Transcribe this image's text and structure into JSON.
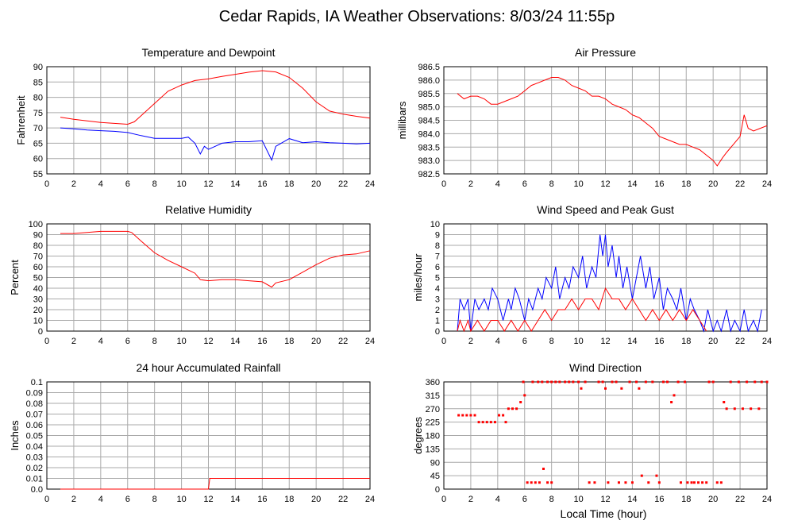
{
  "page": {
    "title": "Cedar Rapids, IA Weather Observations: 8/03/24 11:55p",
    "xlabel": "Local Time (hour)"
  },
  "colors": {
    "red": "#ff0000",
    "blue": "#0000ff",
    "grid": "#aaaaaa",
    "plot_bg": "#ffffff"
  },
  "chart_data": [
    {
      "id": "temp",
      "type": "line",
      "title": "Temperature and Dewpoint",
      "ylabel": "Fahrenheit",
      "xlim": [
        0,
        24
      ],
      "ylim": [
        55,
        90
      ],
      "xticks": [
        "0",
        "2",
        "4",
        "6",
        "8",
        "10",
        "12",
        "14",
        "16",
        "18",
        "20",
        "22",
        "24"
      ],
      "yticks": [
        "55",
        "60",
        "65",
        "70",
        "75",
        "80",
        "85",
        "90"
      ],
      "grid": true,
      "series": [
        {
          "color": "#ff0000",
          "x": [
            1,
            2,
            3,
            4,
            5,
            6,
            6.5,
            7,
            8,
            9,
            10,
            11,
            12,
            13,
            14,
            15,
            16,
            17,
            18,
            19,
            20,
            21,
            22,
            23,
            24
          ],
          "y": [
            73.5,
            72.8,
            72.3,
            71.8,
            71.5,
            71.2,
            72,
            74,
            78,
            82,
            84,
            85.5,
            86,
            86.8,
            87.5,
            88.2,
            88.7,
            88.3,
            86.5,
            83,
            78.5,
            75.5,
            74.5,
            73.8,
            73.2
          ]
        },
        {
          "color": "#0000ff",
          "x": [
            1,
            2,
            3,
            4,
            5,
            6,
            7,
            8,
            9,
            10,
            10.5,
            11,
            11.4,
            11.7,
            12,
            12.5,
            13,
            14,
            15,
            16,
            16.7,
            17,
            18,
            19,
            20,
            21,
            22,
            23,
            24
          ],
          "y": [
            70,
            69.7,
            69.3,
            69.1,
            68.9,
            68.5,
            67.5,
            66.6,
            66.6,
            66.6,
            67,
            65,
            61.5,
            64,
            63,
            64,
            65,
            65.5,
            65.5,
            65.8,
            59.5,
            64,
            66.5,
            65.2,
            65.5,
            65.2,
            65,
            64.8,
            65
          ]
        }
      ]
    },
    {
      "id": "pressure",
      "type": "line",
      "title": "Air Pressure",
      "ylabel": "millibars",
      "xlim": [
        0,
        24
      ],
      "ylim": [
        982.5,
        986.5
      ],
      "xticks": [
        "0",
        "2",
        "4",
        "6",
        "8",
        "10",
        "12",
        "14",
        "16",
        "18",
        "20",
        "22",
        "24"
      ],
      "yticks": [
        "982.5",
        "983.0",
        "983.5",
        "984.0",
        "984.5",
        "985.0",
        "985.5",
        "986.0",
        "986.5"
      ],
      "grid": true,
      "series": [
        {
          "color": "#ff0000",
          "x": [
            1,
            1.5,
            2,
            2.5,
            3,
            3.5,
            4,
            4.5,
            5,
            5.5,
            6,
            6.5,
            7,
            7.5,
            8,
            8.5,
            9,
            9.5,
            10,
            10.5,
            11,
            11.5,
            12,
            12.5,
            13,
            13.5,
            14,
            14.5,
            15,
            15.5,
            16,
            16.5,
            17,
            17.5,
            18,
            18.5,
            19,
            19.5,
            20,
            20.3,
            20.7,
            21,
            21.5,
            22,
            22.3,
            22.6,
            23,
            23.5,
            24
          ],
          "y": [
            985.5,
            985.3,
            985.4,
            985.4,
            985.3,
            985.1,
            985.1,
            985.2,
            985.3,
            985.4,
            985.6,
            985.8,
            985.9,
            986.0,
            986.1,
            986.1,
            986.0,
            985.8,
            985.7,
            985.6,
            985.4,
            985.4,
            985.3,
            985.1,
            985.0,
            984.9,
            984.7,
            984.6,
            984.4,
            984.2,
            983.9,
            983.8,
            983.7,
            983.6,
            983.6,
            983.5,
            983.4,
            983.2,
            983.0,
            982.8,
            983.1,
            983.3,
            983.6,
            983.9,
            984.7,
            984.2,
            984.1,
            984.2,
            984.3
          ]
        }
      ]
    },
    {
      "id": "humidity",
      "type": "line",
      "title": "Relative Humidity",
      "ylabel": "Percent",
      "xlim": [
        0,
        24
      ],
      "ylim": [
        0,
        100
      ],
      "xticks": [
        "0",
        "2",
        "4",
        "6",
        "8",
        "10",
        "12",
        "14",
        "16",
        "18",
        "20",
        "22",
        "24"
      ],
      "yticks": [
        "0",
        "10",
        "20",
        "30",
        "40",
        "50",
        "60",
        "70",
        "80",
        "90",
        "100"
      ],
      "grid": true,
      "series": [
        {
          "color": "#ff0000",
          "x": [
            1,
            2,
            3,
            4,
            5,
            6,
            6.3,
            7,
            8,
            9,
            10,
            11,
            11.4,
            12,
            13,
            14,
            15,
            16,
            16.7,
            17,
            18,
            19,
            20,
            21,
            22,
            23,
            24
          ],
          "y": [
            91,
            91,
            92,
            93,
            93,
            93,
            92,
            84,
            73,
            66,
            60,
            54,
            48,
            47,
            48,
            48,
            47,
            46,
            41,
            45,
            48,
            55,
            62,
            68,
            71,
            72,
            75
          ]
        }
      ]
    },
    {
      "id": "wind",
      "type": "line",
      "title": "Wind Speed and Peak Gust",
      "ylabel": "miles/hour",
      "xlim": [
        0,
        24
      ],
      "ylim": [
        0,
        10
      ],
      "xticks": [
        "0",
        "2",
        "4",
        "6",
        "8",
        "10",
        "12",
        "14",
        "16",
        "18",
        "20",
        "22",
        "24"
      ],
      "yticks": [
        "0",
        "1",
        "2",
        "3",
        "4",
        "5",
        "6",
        "7",
        "8",
        "9",
        "10"
      ],
      "grid": true,
      "series": [
        {
          "color": "#0000ff",
          "x": [
            1,
            1.2,
            1.5,
            1.8,
            2,
            2.3,
            2.6,
            3,
            3.3,
            3.6,
            4,
            4.4,
            4.8,
            5,
            5.3,
            5.6,
            6,
            6.3,
            6.6,
            7,
            7.3,
            7.6,
            8,
            8.3,
            8.6,
            9,
            9.3,
            9.6,
            10,
            10.3,
            10.6,
            11,
            11.3,
            11.6,
            11.8,
            12,
            12.2,
            12.5,
            12.8,
            13,
            13.3,
            13.6,
            14,
            14.3,
            14.6,
            15,
            15.3,
            15.6,
            16,
            16.3,
            16.6,
            17,
            17.3,
            17.6,
            18,
            18.3,
            18.6,
            19,
            19.3,
            19.6,
            20,
            20.3,
            20.6,
            21,
            21.3,
            21.6,
            22,
            22.3,
            22.6,
            23,
            23.3,
            23.6
          ],
          "y": [
            0,
            3,
            2,
            3,
            0,
            3,
            2,
            3,
            2,
            4,
            3,
            1,
            3,
            2,
            4,
            3,
            1,
            3,
            2,
            4,
            3,
            5,
            4,
            6,
            3,
            5,
            4,
            6,
            5,
            7,
            4,
            6,
            5,
            9,
            7,
            9,
            6,
            8,
            5,
            7,
            4,
            6,
            3,
            5,
            7,
            4,
            6,
            3,
            5,
            2,
            4,
            3,
            2,
            4,
            1,
            3,
            2,
            1,
            0,
            2,
            0,
            1,
            0,
            2,
            0,
            1,
            0,
            2,
            0,
            1,
            0,
            2
          ]
        },
        {
          "color": "#ff0000",
          "x": [
            1,
            1.2,
            1.5,
            1.8,
            2,
            2.5,
            3,
            3.5,
            4,
            4.5,
            5,
            5.5,
            6,
            6.5,
            7,
            7.5,
            8,
            8.5,
            9,
            9.5,
            10,
            10.5,
            11,
            11.5,
            12,
            12.5,
            13,
            13.5,
            14,
            14.5,
            15,
            15.5,
            16,
            16.5,
            17,
            17.5,
            18,
            18.5,
            19,
            19.5
          ],
          "y": [
            0,
            1,
            0,
            1,
            0,
            1,
            0,
            1,
            1,
            0,
            1,
            0,
            1,
            0,
            1,
            2,
            1,
            2,
            2,
            3,
            2,
            3,
            3,
            2,
            4,
            3,
            3,
            2,
            3,
            2,
            1,
            2,
            1,
            2,
            1,
            2,
            1,
            2,
            1,
            0
          ]
        }
      ]
    },
    {
      "id": "rain",
      "type": "line",
      "title": "24 hour Accumulated Rainfall",
      "ylabel": "Inches",
      "xlim": [
        0,
        24
      ],
      "ylim": [
        0,
        0.1
      ],
      "xticks": [
        "0",
        "2",
        "4",
        "6",
        "8",
        "10",
        "12",
        "14",
        "16",
        "18",
        "20",
        "22",
        "24"
      ],
      "yticks": [
        "0.0",
        "0.01",
        "0.02",
        "0.03",
        "0.04",
        "0.05",
        "0.06",
        "0.07",
        "0.08",
        "0.09",
        "0.1"
      ],
      "grid": true,
      "series": [
        {
          "color": "#ff0000",
          "x": [
            1,
            11.9,
            12,
            12.1,
            24
          ],
          "y": [
            0,
            0,
            0,
            0.01,
            0.01
          ]
        }
      ]
    },
    {
      "id": "winddir",
      "type": "scatter",
      "title": "Wind Direction",
      "ylabel": "degrees",
      "xlim": [
        0,
        24
      ],
      "ylim": [
        0,
        360
      ],
      "xticks": [
        "0",
        "2",
        "4",
        "6",
        "8",
        "10",
        "12",
        "14",
        "16",
        "18",
        "20",
        "22",
        "24"
      ],
      "yticks": [
        "0",
        "45",
        "90",
        "135",
        "180",
        "225",
        "270",
        "315",
        "360"
      ],
      "grid": true,
      "series": [
        {
          "color": "#ff0000",
          "points": [
            [
              1.1,
              248
            ],
            [
              1.4,
              248
            ],
            [
              1.7,
              248
            ],
            [
              2.0,
              248
            ],
            [
              2.3,
              248
            ],
            [
              2.6,
              225
            ],
            [
              2.9,
              225
            ],
            [
              3.2,
              225
            ],
            [
              3.5,
              225
            ],
            [
              3.8,
              225
            ],
            [
              4.1,
              248
            ],
            [
              4.4,
              248
            ],
            [
              4.6,
              225
            ],
            [
              4.8,
              270
            ],
            [
              5.1,
              270
            ],
            [
              5.4,
              270
            ],
            [
              5.7,
              292
            ],
            [
              6.0,
              315
            ],
            [
              6.2,
              22
            ],
            [
              6.5,
              22
            ],
            [
              6.8,
              22
            ],
            [
              7.1,
              22
            ],
            [
              7.4,
              68
            ],
            [
              7.7,
              22
            ],
            [
              8.0,
              22
            ],
            [
              5.9,
              360
            ],
            [
              6.6,
              360
            ],
            [
              7.0,
              360
            ],
            [
              7.3,
              360
            ],
            [
              7.7,
              360
            ],
            [
              8.0,
              360
            ],
            [
              8.3,
              360
            ],
            [
              8.6,
              360
            ],
            [
              9.0,
              360
            ],
            [
              9.3,
              360
            ],
            [
              9.6,
              360
            ],
            [
              10.0,
              360
            ],
            [
              10.2,
              338
            ],
            [
              10.5,
              360
            ],
            [
              10.8,
              22
            ],
            [
              11.2,
              22
            ],
            [
              11.5,
              360
            ],
            [
              11.8,
              360
            ],
            [
              12.0,
              338
            ],
            [
              12.2,
              22
            ],
            [
              12.5,
              360
            ],
            [
              12.8,
              360
            ],
            [
              13.0,
              22
            ],
            [
              13.2,
              338
            ],
            [
              13.5,
              22
            ],
            [
              13.8,
              360
            ],
            [
              14.0,
              22
            ],
            [
              14.3,
              360
            ],
            [
              14.5,
              338
            ],
            [
              14.7,
              45
            ],
            [
              15.0,
              360
            ],
            [
              15.2,
              22
            ],
            [
              15.5,
              360
            ],
            [
              15.8,
              45
            ],
            [
              16.0,
              22
            ],
            [
              16.3,
              360
            ],
            [
              16.6,
              360
            ],
            [
              16.9,
              292
            ],
            [
              17.1,
              315
            ],
            [
              17.4,
              360
            ],
            [
              17.6,
              22
            ],
            [
              17.9,
              360
            ],
            [
              18.1,
              22
            ],
            [
              18.4,
              22
            ],
            [
              18.6,
              22
            ],
            [
              18.9,
              22
            ],
            [
              19.2,
              22
            ],
            [
              19.5,
              22
            ],
            [
              19.7,
              360
            ],
            [
              20.0,
              360
            ],
            [
              20.3,
              22
            ],
            [
              20.6,
              22
            ],
            [
              20.8,
              292
            ],
            [
              21.0,
              270
            ],
            [
              21.3,
              360
            ],
            [
              21.6,
              270
            ],
            [
              21.9,
              360
            ],
            [
              22.2,
              270
            ],
            [
              22.5,
              360
            ],
            [
              22.8,
              270
            ],
            [
              23.1,
              360
            ],
            [
              23.4,
              270
            ],
            [
              23.6,
              360
            ],
            [
              24.0,
              360
            ]
          ]
        }
      ]
    }
  ]
}
